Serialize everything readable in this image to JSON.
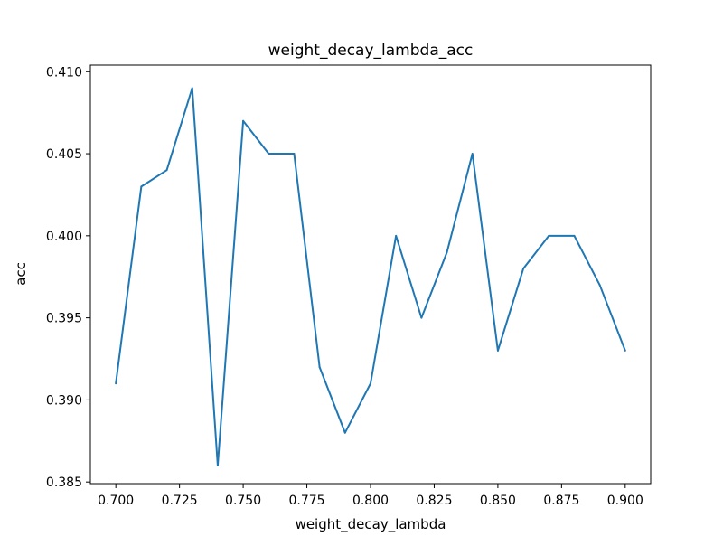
{
  "chart_data": {
    "type": "line",
    "title": "weight_decay_lambda_acc",
    "xlabel": "weight_decay_lambda",
    "ylabel": "acc",
    "xlim": [
      0.69,
      0.91
    ],
    "ylim": [
      0.3849,
      0.4104
    ],
    "x_ticks": [
      "0.700",
      "0.725",
      "0.750",
      "0.775",
      "0.800",
      "0.825",
      "0.850",
      "0.875",
      "0.900"
    ],
    "y_ticks": [
      "0.385",
      "0.390",
      "0.395",
      "0.400",
      "0.405",
      "0.410"
    ],
    "grid": false,
    "legend": "none",
    "series": [
      {
        "color": "#1f77b4",
        "x": [
          0.7,
          0.71,
          0.72,
          0.73,
          0.74,
          0.75,
          0.76,
          0.77,
          0.78,
          0.79,
          0.8,
          0.81,
          0.82,
          0.83,
          0.84,
          0.85,
          0.86,
          0.87,
          0.88,
          0.89,
          0.9
        ],
        "y": [
          0.391,
          0.403,
          0.404,
          0.409,
          0.386,
          0.407,
          0.405,
          0.405,
          0.392,
          0.388,
          0.391,
          0.4,
          0.395,
          0.399,
          0.405,
          0.393,
          0.398,
          0.4,
          0.4,
          0.397,
          0.393
        ]
      }
    ]
  }
}
